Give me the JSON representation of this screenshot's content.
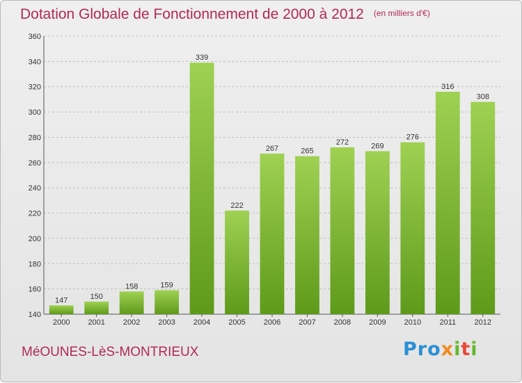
{
  "header": {
    "title": "Dotation Globale de Fonctionnement de 2000 à 2012",
    "unit": "(en milliers d'€)"
  },
  "footer": {
    "town": "MéOUNES-LèS-MONTRIEUX",
    "logo": "Proxiti"
  },
  "colors": {
    "bar_top": "#9fd153",
    "bar_bottom": "#5e9a1a",
    "title": "#b02a52",
    "grid": "#bdbdbd"
  },
  "chart_data": {
    "type": "bar",
    "title": "Dotation Globale de Fonctionnement de 2000 à 2012",
    "subtitle": "(en milliers d'€)",
    "xlabel": "",
    "ylabel": "",
    "categories": [
      "2000",
      "2001",
      "2002",
      "2003",
      "2004",
      "2005",
      "2006",
      "2007",
      "2008",
      "2009",
      "2010",
      "2011",
      "2012"
    ],
    "values": [
      147,
      150,
      158,
      159,
      339,
      222,
      267,
      265,
      272,
      269,
      276,
      316,
      308
    ],
    "ylim": [
      140,
      360
    ],
    "yticks": [
      140,
      160,
      180,
      200,
      220,
      240,
      260,
      280,
      300,
      320,
      340,
      360
    ],
    "grid": true,
    "data_labels": true
  }
}
